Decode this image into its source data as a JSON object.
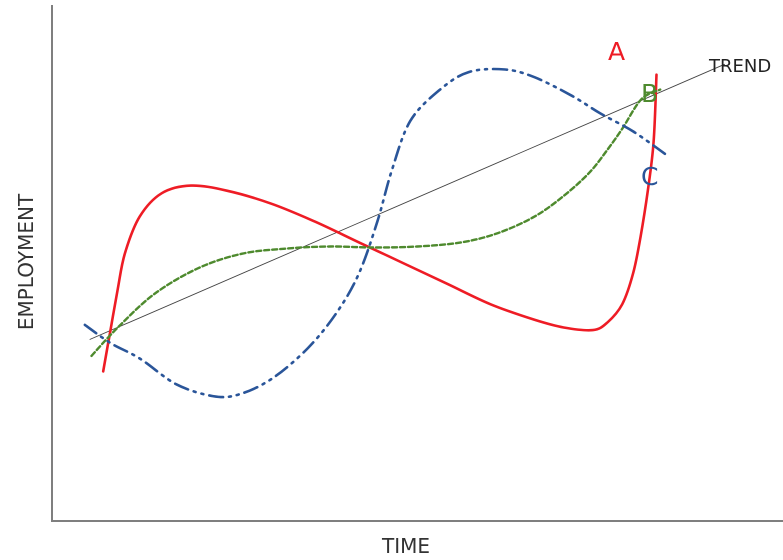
{
  "chart_data": {
    "type": "line",
    "xlabel": "TIME",
    "ylabel": "EMPLOYMENT",
    "xlim": [
      0,
      100
    ],
    "ylim": [
      0,
      100
    ],
    "grid": false,
    "series": [
      {
        "name": "A",
        "color": "#ee1c25",
        "style": "solid",
        "points": [
          [
            7,
            29
          ],
          [
            8,
            37
          ],
          [
            9,
            45
          ],
          [
            10,
            52
          ],
          [
            12,
            59
          ],
          [
            15,
            63.5
          ],
          [
            19,
            65
          ],
          [
            24,
            64
          ],
          [
            30,
            61.5
          ],
          [
            36,
            58
          ],
          [
            42,
            54
          ],
          [
            48,
            50
          ],
          [
            54,
            46
          ],
          [
            60,
            42
          ],
          [
            66,
            39
          ],
          [
            70,
            37.5
          ],
          [
            74,
            37
          ],
          [
            76,
            38.5
          ],
          [
            78,
            42
          ],
          [
            79.5,
            48
          ],
          [
            80.5,
            55
          ],
          [
            81.5,
            64
          ],
          [
            82.3,
            73.5
          ],
          [
            82.7,
            86.5
          ]
        ]
      },
      {
        "name": "B",
        "color": "#4e8a2e",
        "style": "dashed",
        "points": [
          [
            5.4,
            32
          ],
          [
            9,
            37.5
          ],
          [
            14,
            44
          ],
          [
            20,
            49
          ],
          [
            26,
            51.8
          ],
          [
            32,
            52.8
          ],
          [
            38,
            53.2
          ],
          [
            44,
            53
          ],
          [
            50,
            53.2
          ],
          [
            56,
            54
          ],
          [
            61,
            55.8
          ],
          [
            66,
            59
          ],
          [
            70,
            63
          ],
          [
            73.5,
            67.5
          ],
          [
            76,
            72
          ],
          [
            78,
            76
          ],
          [
            80.6,
            81.7
          ],
          [
            83.2,
            83.6
          ]
        ]
      },
      {
        "name": "C",
        "color": "#2a5599",
        "style": "dashdotdot",
        "points": [
          [
            4.5,
            38
          ],
          [
            8,
            34.5
          ],
          [
            12,
            31.5
          ],
          [
            17,
            26.5
          ],
          [
            22,
            24.2
          ],
          [
            25.5,
            24.5
          ],
          [
            30,
            27.5
          ],
          [
            35,
            33.5
          ],
          [
            39,
            40.5
          ],
          [
            42,
            48
          ],
          [
            44.5,
            58
          ],
          [
            46.5,
            68
          ],
          [
            49,
            77.5
          ],
          [
            53,
            83.5
          ],
          [
            57,
            87
          ],
          [
            62,
            87.5
          ],
          [
            66,
            86
          ],
          [
            71,
            82.5
          ],
          [
            75,
            79
          ],
          [
            79.5,
            75.5
          ],
          [
            84,
            71
          ]
        ]
      },
      {
        "name": "TREND",
        "color": "#444444",
        "style": "thin",
        "points": [
          [
            5.2,
            35.2
          ],
          [
            92,
            88.5
          ]
        ]
      }
    ]
  }
}
